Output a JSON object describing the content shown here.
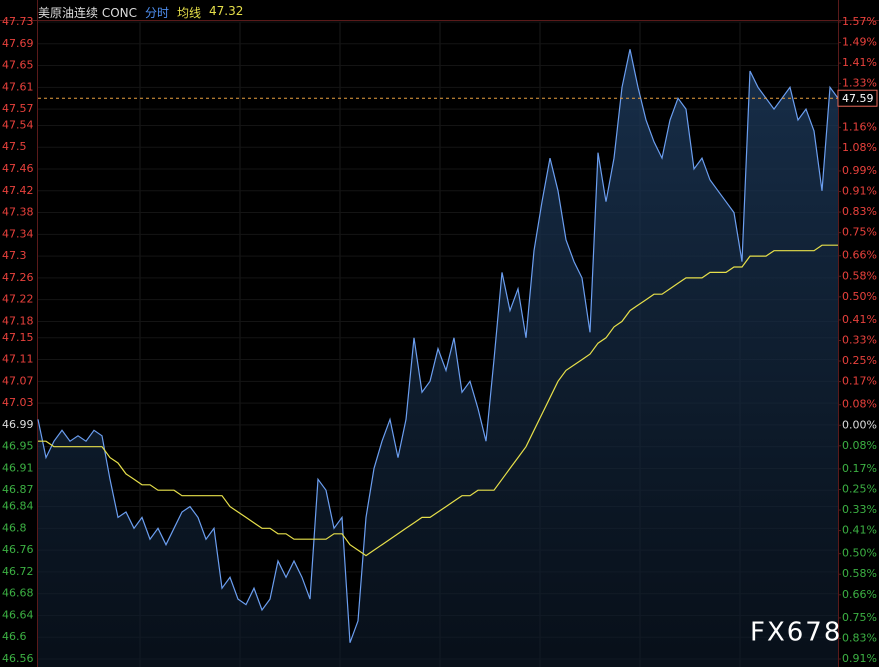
{
  "chart_data": {
    "type": "line",
    "title": "美原油连续 CONC",
    "legend_value": 47.32,
    "last_price": 47.59,
    "watermark": "FX678",
    "base": 46.99,
    "up_color": "#e8413c",
    "down_color": "#3cb043",
    "grid": true,
    "ylim": [
      46.56,
      47.73
    ],
    "yticks": [
      47.73,
      47.69,
      47.65,
      47.61,
      47.57,
      47.54,
      47.5,
      47.46,
      47.42,
      47.38,
      47.34,
      47.3,
      47.26,
      47.22,
      47.18,
      47.15,
      47.11,
      47.07,
      47.03,
      46.99,
      46.95,
      46.91,
      46.87,
      46.84,
      46.8,
      46.76,
      46.72,
      46.68,
      46.64,
      46.6,
      46.56
    ],
    "y2lim": [
      -0.91,
      1.57
    ],
    "y2ticks": [
      {
        "value": 1.57,
        "label": "1.57%"
      },
      {
        "value": 1.49,
        "label": "1.49%"
      },
      {
        "value": 1.41,
        "label": "1.41%"
      },
      {
        "value": 1.33,
        "label": "1.33%"
      },
      {
        "value": 1.16,
        "label": "1.16%"
      },
      {
        "value": 1.08,
        "label": "1.08%"
      },
      {
        "value": 0.99,
        "label": "0.99%"
      },
      {
        "value": 0.91,
        "label": "0.91%"
      },
      {
        "value": 0.83,
        "label": "0.83%"
      },
      {
        "value": 0.75,
        "label": "0.75%"
      },
      {
        "value": 0.66,
        "label": "0.66%"
      },
      {
        "value": 0.58,
        "label": "0.58%"
      },
      {
        "value": 0.5,
        "label": "0.50%"
      },
      {
        "value": 0.41,
        "label": "0.41%"
      },
      {
        "value": 0.33,
        "label": "0.33%"
      },
      {
        "value": 0.25,
        "label": "0.25%"
      },
      {
        "value": 0.17,
        "label": "0.17%"
      },
      {
        "value": 0.08,
        "label": "0.08%"
      },
      {
        "value": 0,
        "label": "0.00%"
      },
      {
        "value": -0.08,
        "label": "0.08%"
      },
      {
        "value": -0.17,
        "label": "0.17%"
      },
      {
        "value": -0.25,
        "label": "0.25%"
      },
      {
        "value": -0.33,
        "label": "0.33%"
      },
      {
        "value": -0.41,
        "label": "0.41%"
      },
      {
        "value": -0.5,
        "label": "0.50%"
      },
      {
        "value": -0.58,
        "label": "0.58%"
      },
      {
        "value": -0.66,
        "label": "0.66%"
      },
      {
        "value": -0.75,
        "label": "0.75%"
      },
      {
        "value": -0.83,
        "label": "0.83%"
      },
      {
        "value": -0.91,
        "label": "0.91%"
      }
    ],
    "series": [
      {
        "name": "分时",
        "color": "#6b9ef0",
        "values": [
          47.0,
          46.93,
          46.96,
          46.98,
          46.96,
          46.97,
          46.96,
          46.98,
          46.97,
          46.89,
          46.82,
          46.83,
          46.8,
          46.82,
          46.78,
          46.8,
          46.77,
          46.8,
          46.83,
          46.84,
          46.82,
          46.78,
          46.8,
          46.69,
          46.71,
          46.67,
          46.66,
          46.69,
          46.65,
          46.67,
          46.74,
          46.71,
          46.74,
          46.71,
          46.67,
          46.89,
          46.87,
          46.8,
          46.82,
          46.59,
          46.63,
          46.82,
          46.91,
          46.96,
          47.0,
          46.93,
          47.0,
          47.15,
          47.05,
          47.07,
          47.13,
          47.09,
          47.15,
          47.05,
          47.07,
          47.02,
          46.96,
          47.11,
          47.27,
          47.2,
          47.24,
          47.15,
          47.31,
          47.4,
          47.48,
          47.42,
          47.33,
          47.29,
          47.26,
          47.16,
          47.49,
          47.4,
          47.48,
          47.61,
          47.68,
          47.61,
          47.55,
          47.51,
          47.48,
          47.55,
          47.59,
          47.57,
          47.46,
          47.48,
          47.44,
          47.42,
          47.4,
          47.38,
          47.29,
          47.64,
          47.61,
          47.59,
          47.57,
          47.59,
          47.61,
          47.55,
          47.57,
          47.53,
          47.42,
          47.61,
          47.59
        ]
      },
      {
        "name": "均线",
        "color": "#e6df4a",
        "values": [
          46.96,
          46.96,
          46.95,
          46.95,
          46.95,
          46.95,
          46.95,
          46.95,
          46.95,
          46.93,
          46.92,
          46.9,
          46.89,
          46.88,
          46.88,
          46.87,
          46.87,
          46.87,
          46.86,
          46.86,
          46.86,
          46.86,
          46.86,
          46.86,
          46.84,
          46.83,
          46.82,
          46.81,
          46.8,
          46.8,
          46.79,
          46.79,
          46.78,
          46.78,
          46.78,
          46.78,
          46.78,
          46.79,
          46.79,
          46.77,
          46.76,
          46.75,
          46.76,
          46.77,
          46.78,
          46.79,
          46.8,
          46.81,
          46.82,
          46.82,
          46.83,
          46.84,
          46.85,
          46.86,
          46.86,
          46.87,
          46.87,
          46.87,
          46.89,
          46.91,
          46.93,
          46.95,
          46.98,
          47.01,
          47.04,
          47.07,
          47.09,
          47.1,
          47.11,
          47.12,
          47.14,
          47.15,
          47.17,
          47.18,
          47.2,
          47.21,
          47.22,
          47.23,
          47.23,
          47.24,
          47.25,
          47.26,
          47.26,
          47.26,
          47.27,
          47.27,
          47.27,
          47.28,
          47.28,
          47.3,
          47.3,
          47.3,
          47.31,
          47.31,
          47.31,
          47.31,
          47.31,
          47.31,
          47.32,
          47.32,
          47.32
        ]
      }
    ]
  }
}
